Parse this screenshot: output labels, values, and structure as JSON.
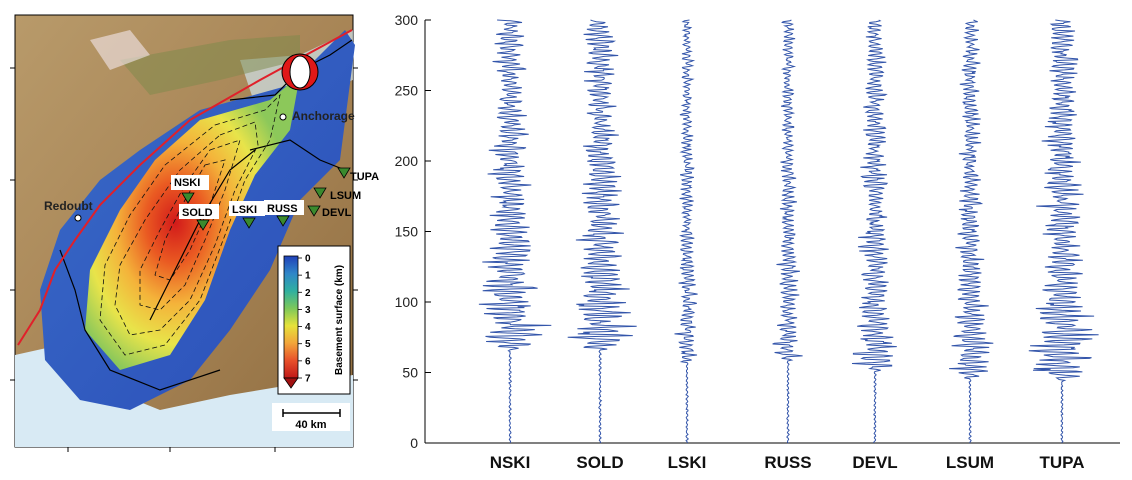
{
  "map": {
    "place_labels": [
      {
        "id": "anchorage",
        "text": "Anchorage"
      },
      {
        "id": "redoubt",
        "text": "Redoubt"
      }
    ],
    "stations": [
      {
        "id": "NSKI",
        "text": "NSKI"
      },
      {
        "id": "SOLD",
        "text": "SOLD"
      },
      {
        "id": "LSKI",
        "text": "LSKI"
      },
      {
        "id": "RUSS",
        "text": "RUSS"
      },
      {
        "id": "DEVL",
        "text": "DEVL"
      },
      {
        "id": "LSUM",
        "text": "LSUM"
      },
      {
        "id": "TUPA",
        "text": "TUPA"
      }
    ],
    "colorbar": {
      "title": "Basement surface (km)",
      "ticks": [
        "0",
        "1",
        "2",
        "3",
        "4",
        "5",
        "6",
        "7"
      ],
      "colors": [
        "#2040b8",
        "#2f86c8",
        "#2fb0a0",
        "#7cc85a",
        "#e6e23a",
        "#f2a53a",
        "#e8502a",
        "#c01818"
      ]
    },
    "scalebar": "40 km",
    "colors": {
      "fault": "#e0202a",
      "station": "#3a8a2e",
      "basin_outline": "#000000"
    }
  },
  "chart_data": {
    "type": "line",
    "title": "",
    "xlabel": "",
    "ylabel": "",
    "ylim": [
      0,
      300
    ],
    "yticks": [
      "0",
      "50",
      "100",
      "150",
      "200",
      "250",
      "300"
    ],
    "line_color": "#3355aa",
    "series": [
      {
        "name": "NSKI",
        "onset": 65,
        "peak": 0.62,
        "energy_range": [
          65,
          300
        ]
      },
      {
        "name": "SOLD",
        "onset": 65,
        "peak": 0.62,
        "energy_range": [
          65,
          300
        ]
      },
      {
        "name": "LSKI",
        "onset": 55,
        "peak": 0.22,
        "energy_range": [
          55,
          300
        ]
      },
      {
        "name": "RUSS",
        "onset": 55,
        "peak": 0.25,
        "energy_range": [
          55,
          300
        ]
      },
      {
        "name": "DEVL",
        "onset": 50,
        "peak": 0.45,
        "energy_range": [
          50,
          300
        ]
      },
      {
        "name": "LSUM",
        "onset": 45,
        "peak": 0.4,
        "energy_range": [
          45,
          300
        ]
      },
      {
        "name": "TUPA",
        "onset": 44,
        "peak": 0.7,
        "energy_range": [
          44,
          300
        ]
      }
    ]
  }
}
